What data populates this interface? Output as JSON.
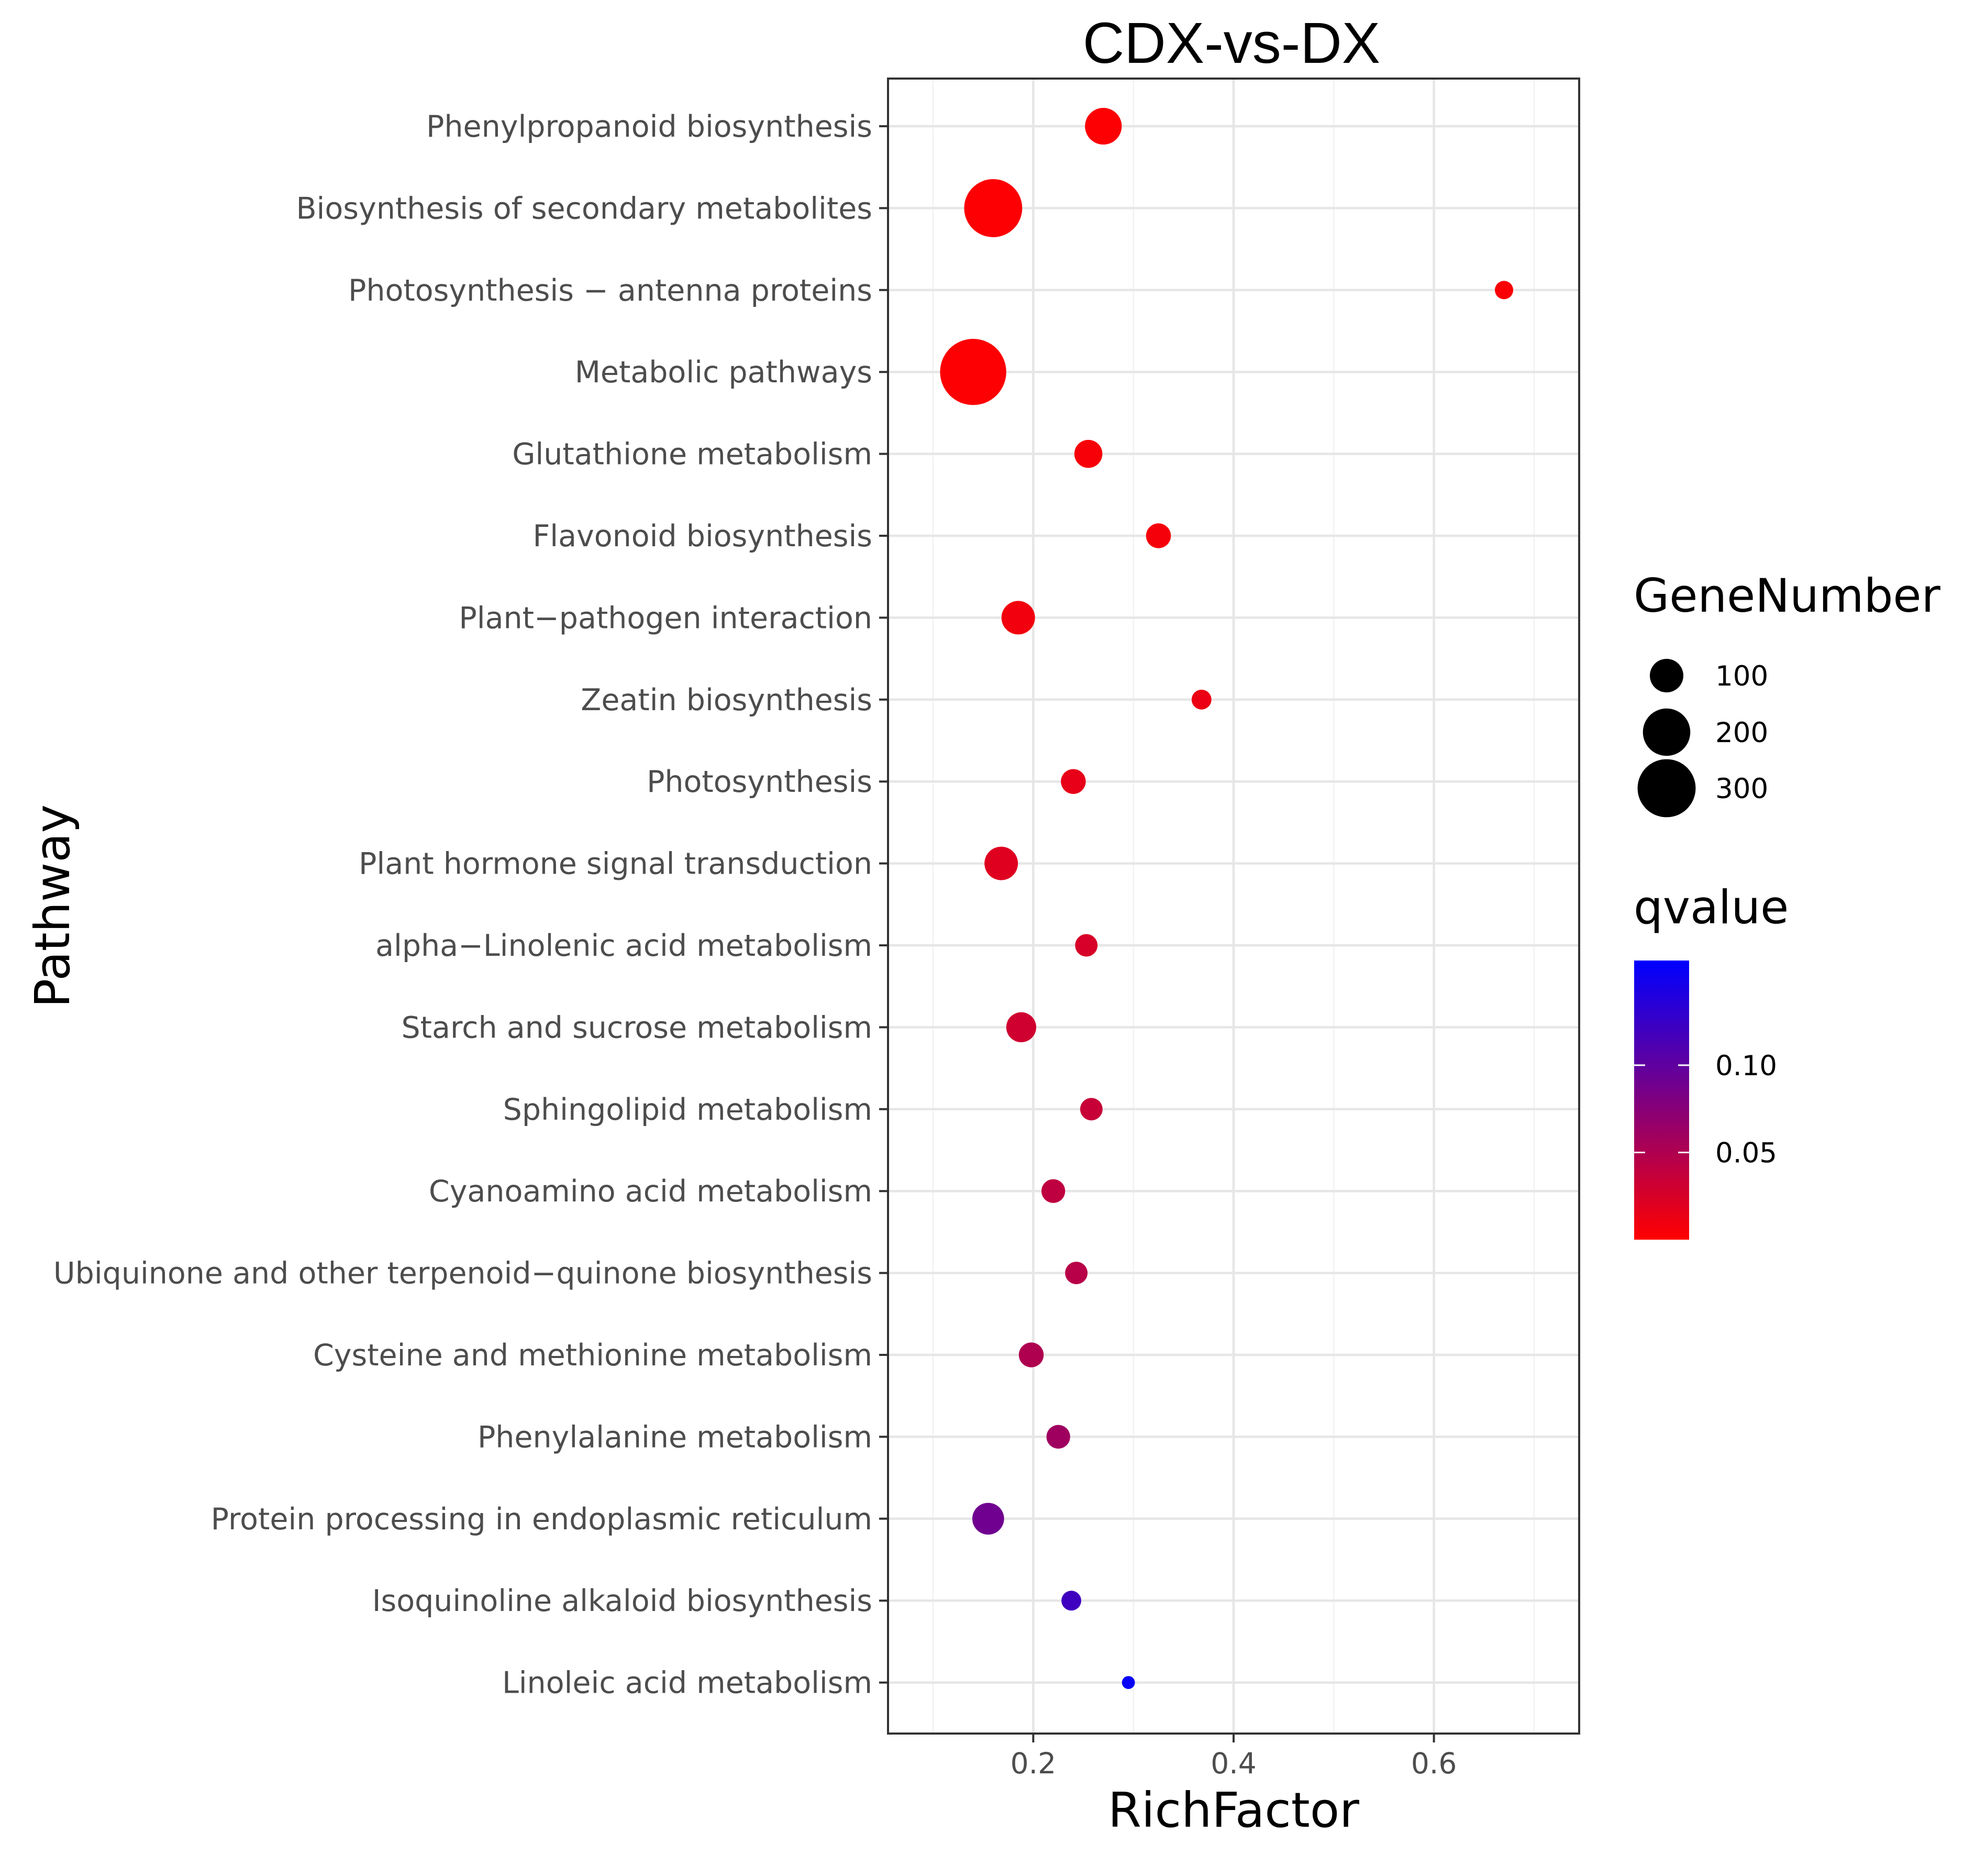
{
  "chart_data": {
    "type": "scatter",
    "title": "CDX-vs-DX",
    "xlabel": "RichFactor",
    "ylabel": "Pathway",
    "xlim": [
      0.055,
      0.745
    ],
    "x_ticks": [
      0.2,
      0.4,
      0.6
    ],
    "x_tick_labels": [
      "0.2",
      "0.4",
      "0.6"
    ],
    "grid": true,
    "points": [
      {
        "pathway": "Phenylpropanoid biosynthesis",
        "rich_factor": 0.27,
        "gene_number": 120,
        "qvalue": 0.002
      },
      {
        "pathway": "Biosynthesis of secondary metabolites",
        "rich_factor": 0.16,
        "gene_number": 300,
        "qvalue": 0.002
      },
      {
        "pathway": "Photosynthesis − antenna proteins",
        "rich_factor": 0.67,
        "gene_number": 30,
        "qvalue": 0.003
      },
      {
        "pathway": "Metabolic pathways",
        "rich_factor": 0.14,
        "gene_number": 390,
        "qvalue": 0.002
      },
      {
        "pathway": "Glutathione metabolism",
        "rich_factor": 0.255,
        "gene_number": 70,
        "qvalue": 0.005
      },
      {
        "pathway": "Flavonoid biosynthesis",
        "rich_factor": 0.325,
        "gene_number": 55,
        "qvalue": 0.006
      },
      {
        "pathway": "Plant−pathogen interaction",
        "rich_factor": 0.185,
        "gene_number": 100,
        "qvalue": 0.008
      },
      {
        "pathway": "Zeatin biosynthesis",
        "rich_factor": 0.368,
        "gene_number": 35,
        "qvalue": 0.012
      },
      {
        "pathway": "Photosynthesis",
        "rich_factor": 0.24,
        "gene_number": 55,
        "qvalue": 0.015
      },
      {
        "pathway": "Plant hormone signal transduction",
        "rich_factor": 0.168,
        "gene_number": 100,
        "qvalue": 0.02
      },
      {
        "pathway": "alpha−Linolenic acid metabolism",
        "rich_factor": 0.253,
        "gene_number": 45,
        "qvalue": 0.025
      },
      {
        "pathway": "Starch and sucrose metabolism",
        "rich_factor": 0.188,
        "gene_number": 80,
        "qvalue": 0.03
      },
      {
        "pathway": "Sphingolipid metabolism",
        "rich_factor": 0.258,
        "gene_number": 45,
        "qvalue": 0.035
      },
      {
        "pathway": "Cyanoamino acid metabolism",
        "rich_factor": 0.22,
        "gene_number": 50,
        "qvalue": 0.04
      },
      {
        "pathway": "Ubiquinone and other terpenoid−quinone biosynthesis",
        "rich_factor": 0.243,
        "gene_number": 45,
        "qvalue": 0.045
      },
      {
        "pathway": "Cysteine and methionine metabolism",
        "rich_factor": 0.198,
        "gene_number": 55,
        "qvalue": 0.05
      },
      {
        "pathway": "Phenylalanine metabolism",
        "rich_factor": 0.225,
        "gene_number": 50,
        "qvalue": 0.06
      },
      {
        "pathway": "Protein processing in endoplasmic reticulum",
        "rich_factor": 0.155,
        "gene_number": 90,
        "qvalue": 0.09
      },
      {
        "pathway": "Isoquinoline alkaloid biosynthesis",
        "rich_factor": 0.238,
        "gene_number": 35,
        "qvalue": 0.12
      },
      {
        "pathway": "Linoleic acid metabolism",
        "rich_factor": 0.295,
        "gene_number": 15,
        "qvalue": 0.155
      }
    ],
    "legend_size": {
      "title": "GeneNumber",
      "values": [
        100,
        200,
        300
      ],
      "labels": [
        "100",
        "200",
        "300"
      ],
      "color": "#000000"
    },
    "legend_color": {
      "title": "qvalue",
      "range": [
        0.0,
        0.16
      ],
      "ticks": [
        0.1,
        0.05
      ],
      "tick_labels": [
        "0.10",
        "0.05"
      ],
      "low_color": "#ff0000",
      "high_color": "#0000ff"
    }
  }
}
